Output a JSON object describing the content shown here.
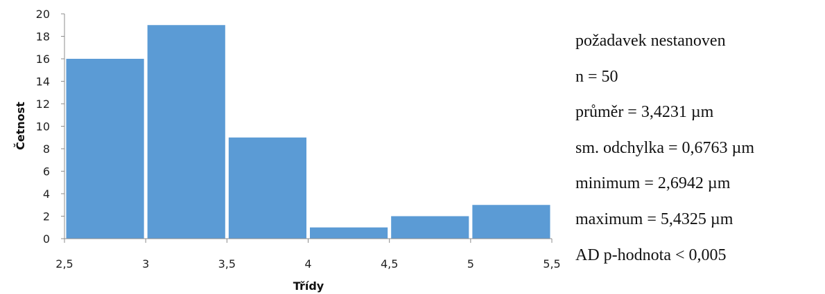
{
  "chart_data": {
    "type": "bar",
    "histogram": true,
    "bins": [
      {
        "from": 2.5,
        "to": 3.0,
        "count": 16
      },
      {
        "from": 3.0,
        "to": 3.5,
        "count": 19
      },
      {
        "from": 3.5,
        "to": 4.0,
        "count": 9
      },
      {
        "from": 4.0,
        "to": 4.5,
        "count": 1
      },
      {
        "from": 4.5,
        "to": 5.0,
        "count": 2
      },
      {
        "from": 5.0,
        "to": 5.5,
        "count": 3
      }
    ],
    "xlabel": "Třídy",
    "ylabel": "Četnost",
    "xlim": [
      2.5,
      5.5
    ],
    "ylim": [
      0,
      20
    ],
    "x_ticks": [
      "2,5",
      "3",
      "3,5",
      "4",
      "4,5",
      "5",
      "5,5"
    ],
    "y_ticks": [
      "0",
      "2",
      "4",
      "6",
      "8",
      "10",
      "12",
      "14",
      "16",
      "18",
      "20"
    ],
    "grid": false,
    "bar_color": "#5b9bd5"
  },
  "stats": [
    "požadavek nestanoven",
    "n = 50",
    "průměr = 3,4231 µm",
    "sm. odchylka = 0,6763 µm",
    "minimum = 2,6942 µm",
    "maximum = 5,4325 µm",
    "AD p-hodnota < 0,005"
  ]
}
